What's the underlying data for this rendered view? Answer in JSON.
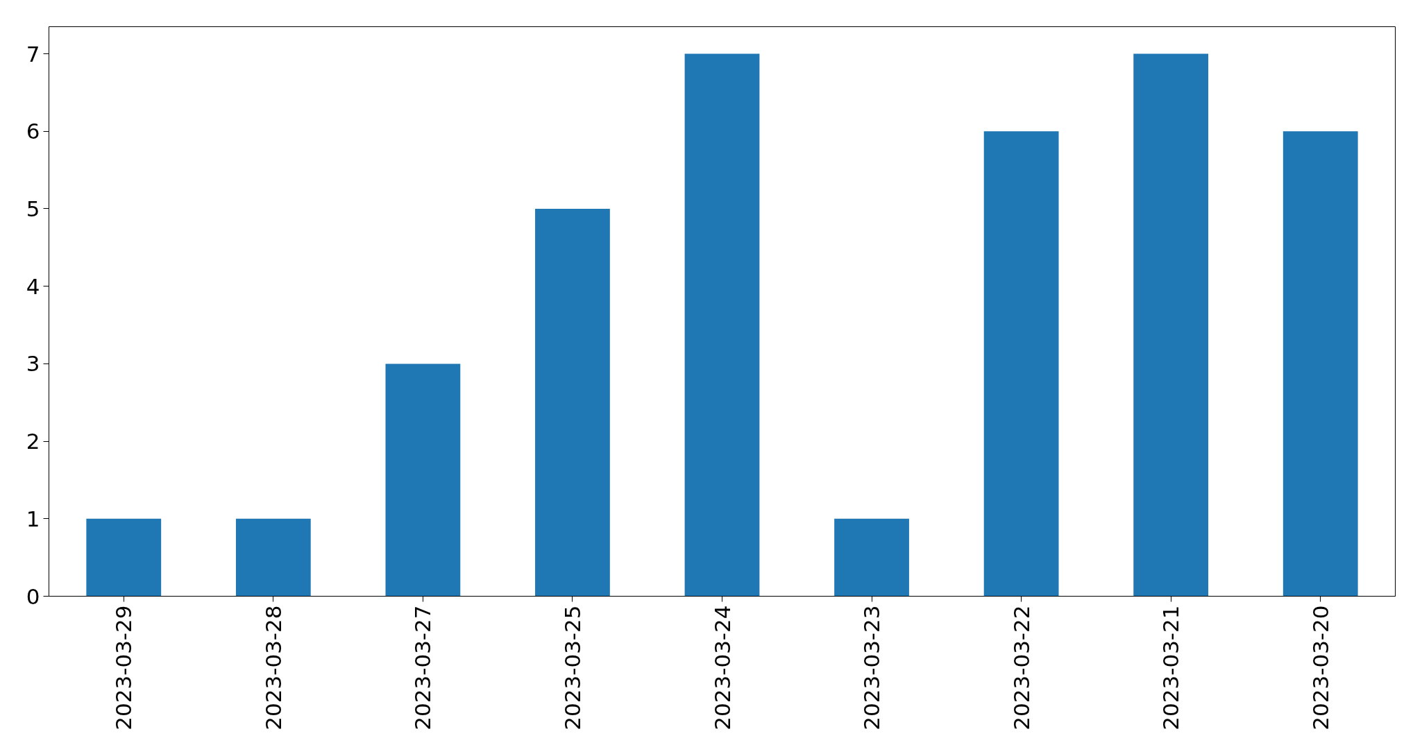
{
  "chart_data": {
    "type": "bar",
    "categories": [
      "2023-03-29",
      "2023-03-28",
      "2023-03-27",
      "2023-03-25",
      "2023-03-24",
      "2023-03-23",
      "2023-03-22",
      "2023-03-21",
      "2023-03-20"
    ],
    "values": [
      1,
      1,
      3,
      5,
      7,
      1,
      6,
      7,
      6
    ],
    "color": "#1f77b4",
    "ylim": [
      0,
      7.35
    ],
    "yticks": [
      0,
      1,
      2,
      3,
      4,
      5,
      6,
      7
    ],
    "grid": false
  }
}
